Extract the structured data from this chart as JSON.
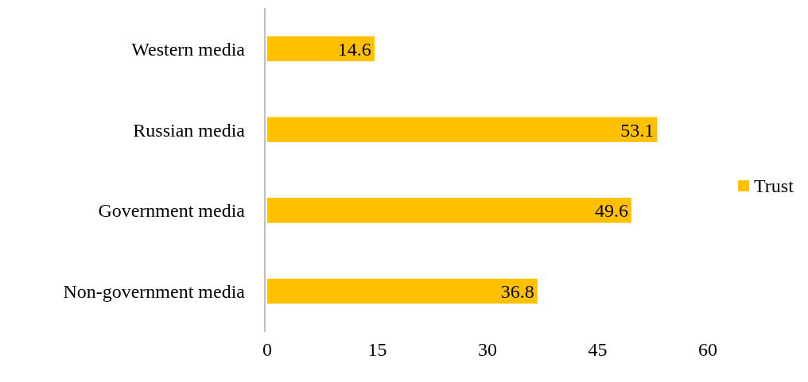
{
  "chart_data": {
    "type": "bar",
    "orientation": "horizontal",
    "categories": [
      "Western media",
      "Russian media",
      "Government media",
      "Non-government media"
    ],
    "series": [
      {
        "name": "Trust",
        "color": "#ffc000",
        "values": [
          14.6,
          53.1,
          49.6,
          36.8
        ]
      }
    ],
    "xlim": [
      0,
      60
    ],
    "xticks": [
      0,
      15,
      30,
      45,
      60
    ],
    "data_labels": true,
    "legend": "right",
    "grid": false
  }
}
